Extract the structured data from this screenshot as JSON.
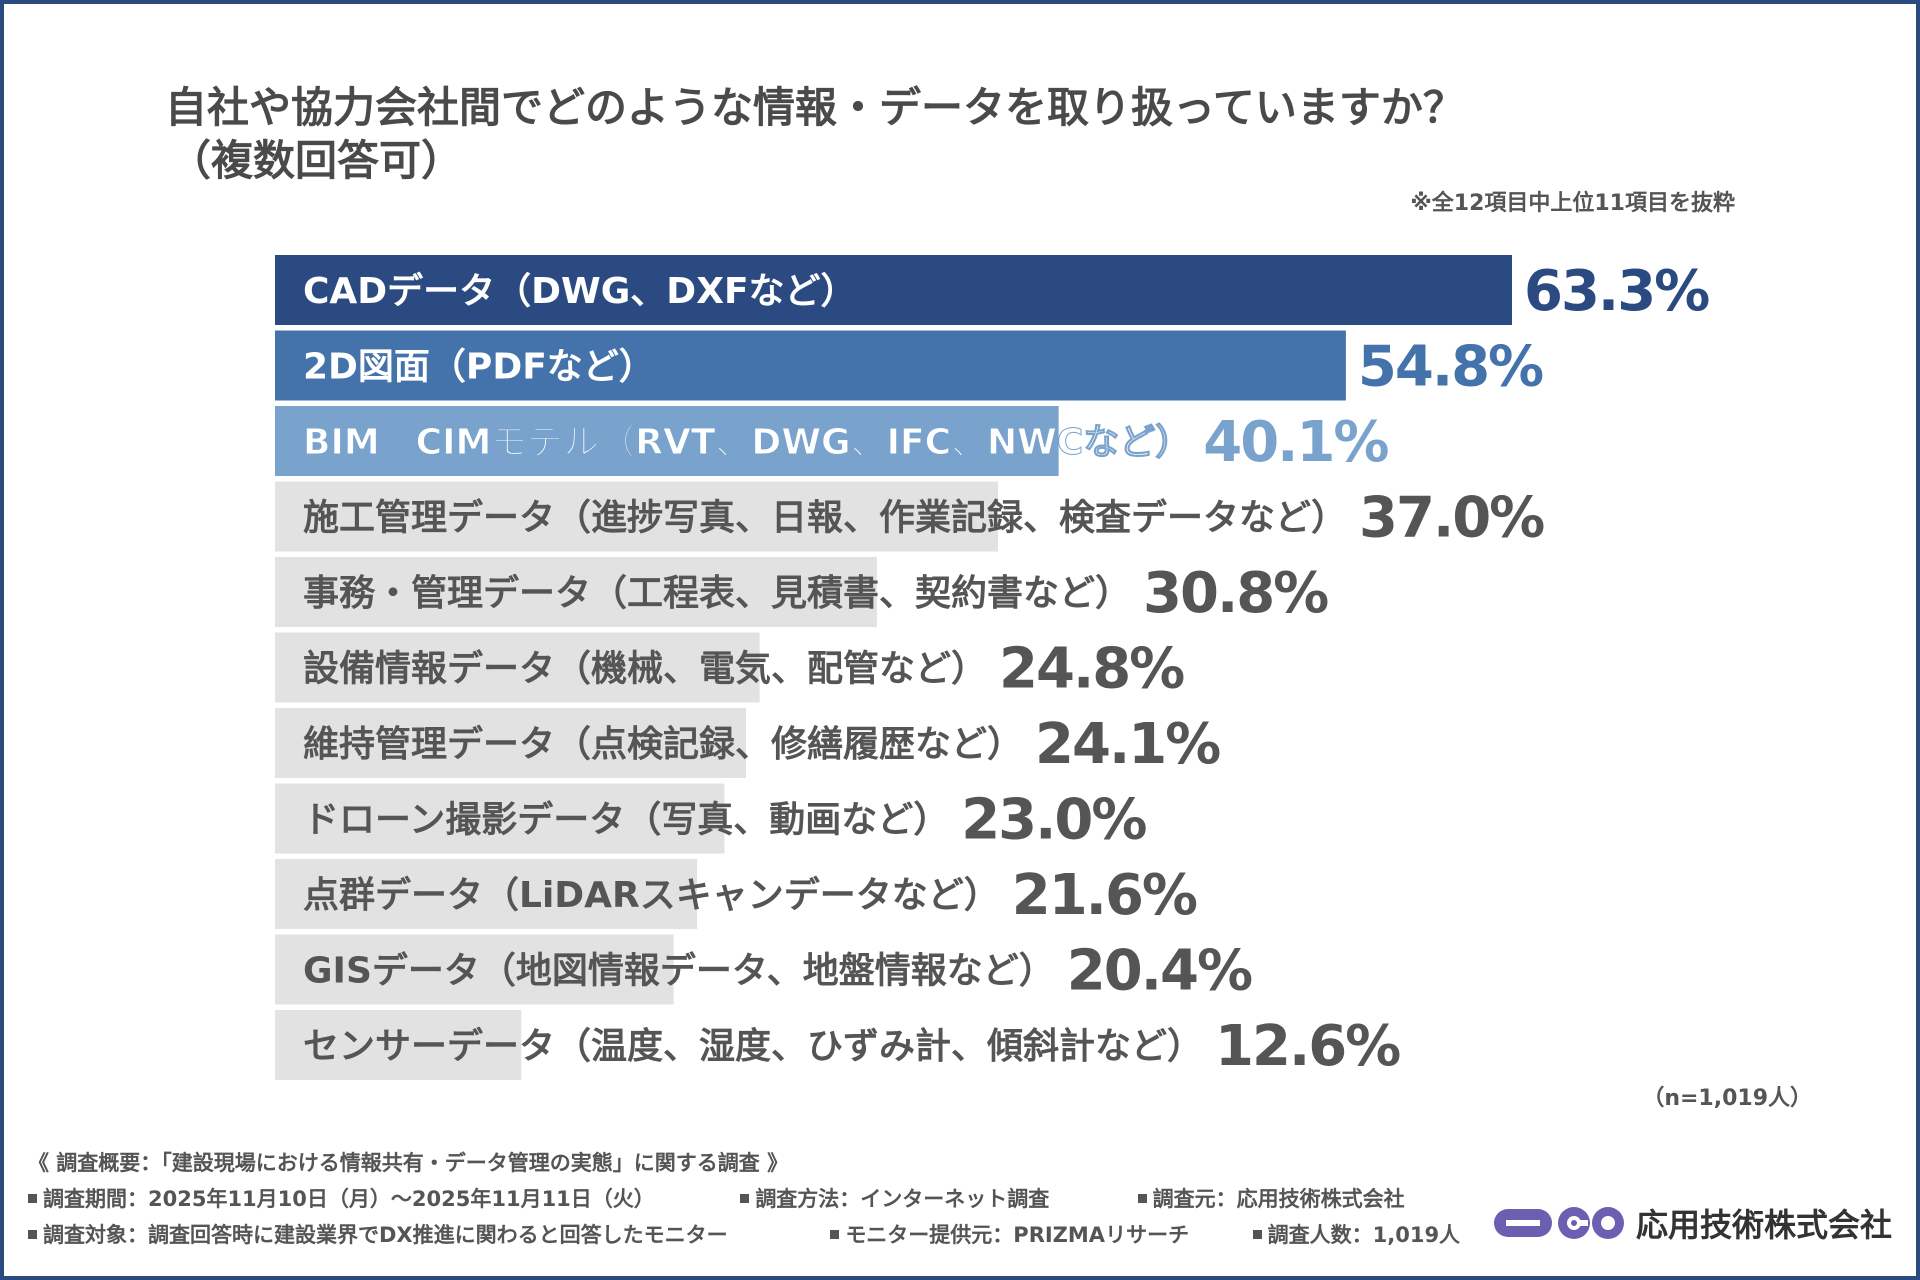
{
  "title_line1": "自社や協力会社間でどのような情報・データを取り扱っていますか？",
  "title_line2": "（複数回答可）",
  "note": "※全12項目中上位11項目を抜粋",
  "n_label": "（n=1,019人）",
  "chart_data": {
    "type": "bar",
    "orientation": "horizontal",
    "title": "自社や協力会社間でどのような情報・データを取り扱っていますか？（複数回答可）",
    "categories": [
      "CADデータ（DWG、DXFなど）",
      "2D図面（PDFなど）",
      "BIM／CIMモデル（RVT、DWG、IFC、NWCなど）",
      "施工管理データ（進捗写真、日報、作業記録、検査データなど）",
      "事務・管理データ（工程表、見積書、契約書など）",
      "設備情報データ（機械、電気、配管など）",
      "維持管理データ（点検記録、修繕履歴など）",
      "ドローン撮影データ（写真、動画など）",
      "点群データ（LiDARスキャンデータなど）",
      "GISデータ（地図情報データ、地盤情報など）",
      "センサーデータ（温度、湿度、ひずみ計、傾斜計など）"
    ],
    "values": [
      63.3,
      54.8,
      40.1,
      37.0,
      30.8,
      24.8,
      24.1,
      23.0,
      21.6,
      20.4,
      12.6
    ],
    "value_labels": [
      "63.3%",
      "54.8%",
      "40.1%",
      "37.0%",
      "30.8%",
      "24.8%",
      "24.1%",
      "23.0%",
      "21.6%",
      "20.4%",
      "12.6%"
    ],
    "unit": "%",
    "xlim": [
      0,
      100
    ],
    "grid": false,
    "legend": "none",
    "bar_colors": [
      "#2c4a82",
      "#4472ab",
      "#79a3cd",
      "#e2e2e2",
      "#e2e2e2",
      "#e2e2e2",
      "#e2e2e2",
      "#e2e2e2",
      "#e2e2e2",
      "#e2e2e2",
      "#e2e2e2"
    ],
    "value_colors": [
      "#2c4a82",
      "#4472ab",
      "#79a3cd",
      "#555555",
      "#555555",
      "#555555",
      "#555555",
      "#555555",
      "#555555",
      "#555555",
      "#555555"
    ]
  },
  "footer": {
    "heading": "《 調査概要：「建設現場における情報共有・データ管理の実態」に関する調査 》",
    "period": "調査期間：2025年11月10日（月）～2025年11月11日（火）",
    "method": "調査方法：インターネット調査",
    "source": "調査元：応用技術株式会社",
    "target": "調査対象：調査回答時に建設業界でDX推進に関わると回答したモニター",
    "provider": "モニター提供元：PRIZMAリサーチ",
    "count": "調査人数：1,019人"
  },
  "company_name": "応用技術株式会社",
  "colors": {
    "frame": "#2d4a80",
    "logo": "#6a5fb0"
  }
}
